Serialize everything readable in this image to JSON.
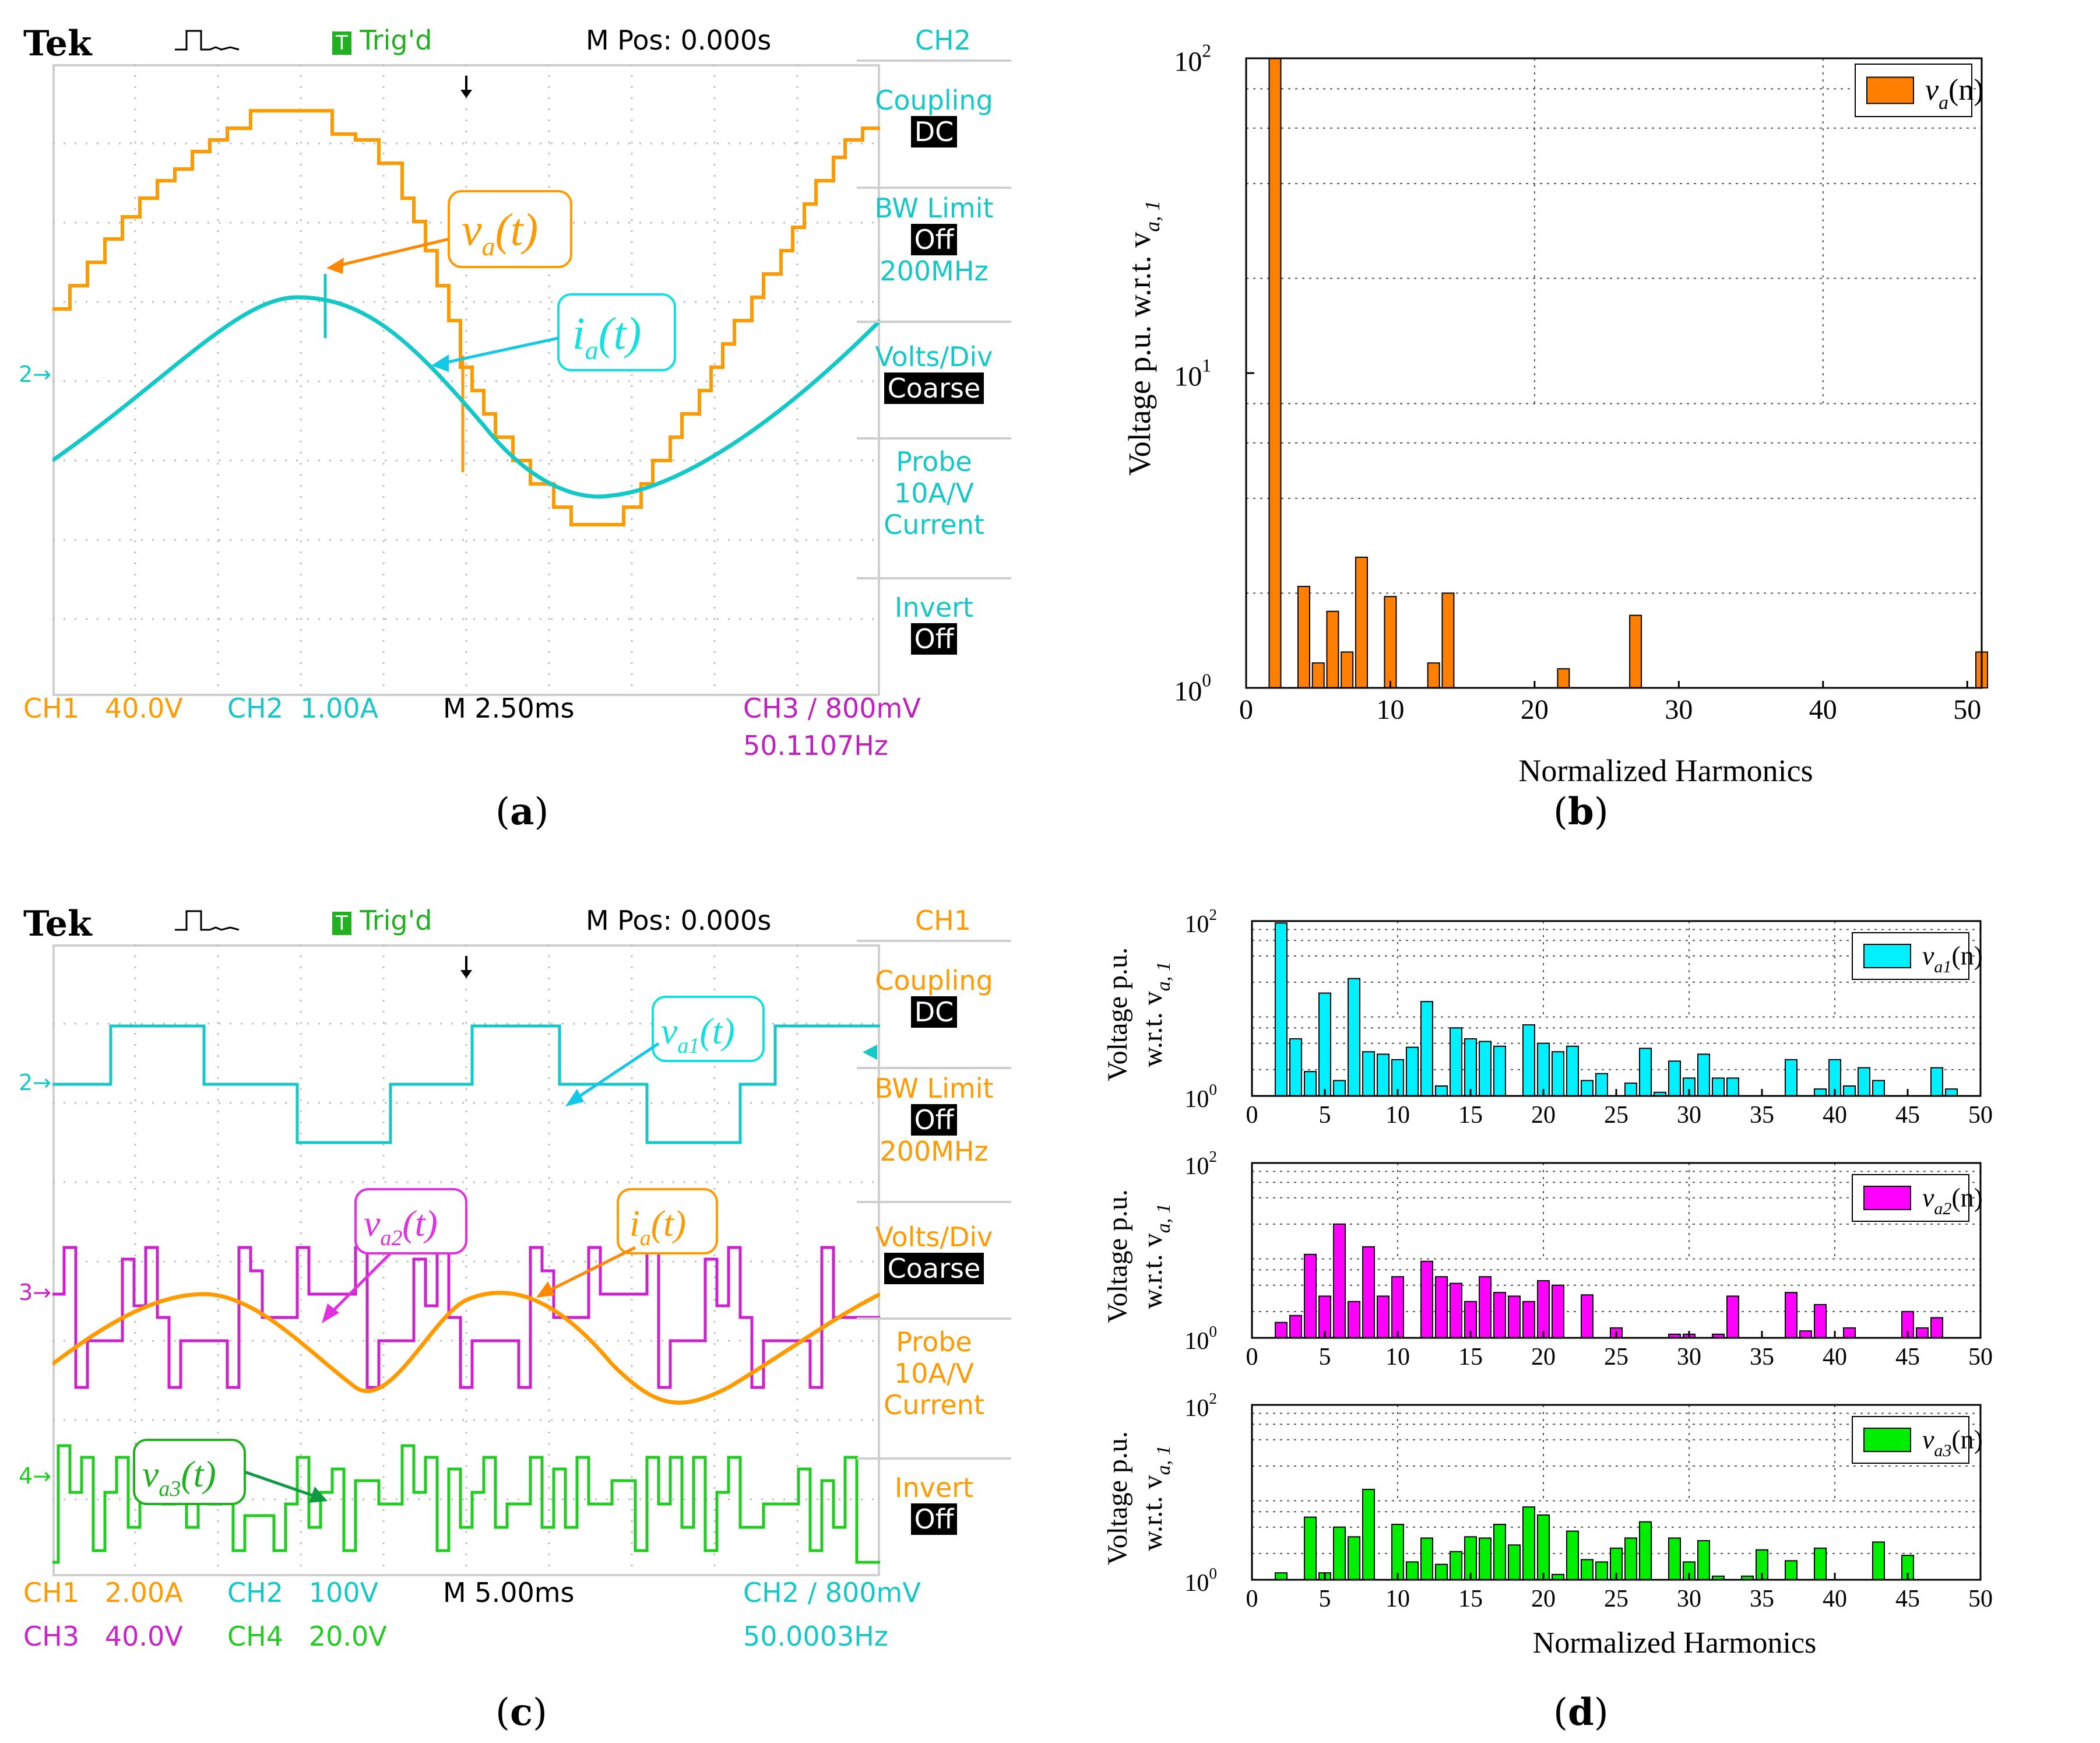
{
  "captions": {
    "a": "a",
    "b": "b",
    "c": "c",
    "d": "d"
  },
  "colors": {
    "orange": "#ff9a00",
    "cyan": "#14c8c8",
    "magenta": "#e600e6",
    "green": "#22cc22",
    "bar_orange": "#ff7f00",
    "bar_cyan": "#00f0ff",
    "bar_magenta": "#ff00ff",
    "bar_green": "#00ee00"
  },
  "scope_a": {
    "brand": "Tek",
    "trig_status": "Trig'd",
    "mpos": "M Pos: 0.000s",
    "channel": "CH2",
    "coupling_label": "Coupling",
    "coupling_value": "DC",
    "bw_label": "BW Limit",
    "bw_value": "Off",
    "bw_freq": "200MHz",
    "volts_label": "Volts/Div",
    "volts_value": "Coarse",
    "probe_label": "Probe",
    "probe_value": "10A/V",
    "probe_type": "Current",
    "invert_label": "Invert",
    "invert_value": "Off",
    "ch1": "CH1",
    "ch1_scale": "40.0V",
    "ch2": "CH2",
    "ch2_scale": "1.00A",
    "timebase": "M 2.50ms",
    "trigger": "CH3 ∕ 800mV",
    "freq": "50.1107Hz",
    "marker_ch2": "2→",
    "label_v": "v",
    "label_v_sub": "a",
    "label_t": "(t)",
    "label_i": "i",
    "label_i_sub": "a"
  },
  "scope_c": {
    "brand": "Tek",
    "trig_status": "Trig'd",
    "mpos": "M Pos: 0.000s",
    "channel": "CH1",
    "coupling_label": "Coupling",
    "coupling_value": "DC",
    "bw_label": "BW Limit",
    "bw_value": "Off",
    "bw_freq": "200MHz",
    "volts_label": "Volts/Div",
    "volts_value": "Coarse",
    "probe_label": "Probe",
    "probe_value": "10A/V",
    "probe_type": "Current",
    "invert_label": "Invert",
    "invert_value": "Off",
    "ch1": "CH1",
    "ch1_scale": "2.00A",
    "ch2": "CH2",
    "ch2_scale": "100V",
    "ch3": "CH3",
    "ch3_scale": "40.0V",
    "ch4": "CH4",
    "ch4_scale": "20.0V",
    "timebase": "M 5.00ms",
    "trigger": "CH2 ∕ 800mV",
    "freq": "50.0003Hz",
    "marker_ch2": "2→",
    "marker_ch3": "3→",
    "marker_ch4": "4→",
    "label_va1": "v",
    "label_va1_sub": "a1",
    "label_va2": "v",
    "label_va2_sub": "a2",
    "label_va3": "v",
    "label_va3_sub": "a3",
    "label_ia": "i",
    "label_ia_sub": "a",
    "label_t": "(t)"
  },
  "chart_data": [
    {
      "id": "b",
      "type": "bar",
      "yscale": "log",
      "xlabel": "Normalized Harmonics",
      "ylabel": "Voltage p.u. w.r.t.  v",
      "ylabel_sub": "a, 1",
      "xlim": [
        0,
        51
      ],
      "ylim": [
        1,
        100
      ],
      "xticks": [
        "0",
        "10",
        "20",
        "30",
        "40",
        "50"
      ],
      "yticks": [
        "10",
        "10",
        "10"
      ],
      "yticks_exp": [
        "0",
        "1",
        "2"
      ],
      "legend": "v",
      "legend_sub": "a",
      "legend_arg": "(n)",
      "x": [
        2,
        4,
        5,
        6,
        7,
        8,
        10,
        13,
        14,
        22,
        27,
        51
      ],
      "values": [
        100,
        2.1,
        1.2,
        1.75,
        1.3,
        2.6,
        1.95,
        1.2,
        2.0,
        1.15,
        1.7,
        1.3
      ]
    },
    {
      "id": "d1",
      "type": "bar",
      "yscale": "log",
      "ylabel": "Voltage p.u.",
      "ylabel2": "w.r.t.  v",
      "ylabel_sub": "a, 1",
      "xlim": [
        0,
        50
      ],
      "ylim": [
        1,
        100
      ],
      "xticks": [
        "0",
        "5",
        "10",
        "15",
        "20",
        "25",
        "30",
        "35",
        "40",
        "45",
        "50"
      ],
      "yticks": [
        "10",
        "10"
      ],
      "yticks_exp": [
        "0",
        "2"
      ],
      "legend": "v",
      "legend_sub": "a1",
      "legend_arg": "(n)",
      "x": [
        2,
        3,
        4,
        5,
        6,
        7,
        8,
        9,
        10,
        11,
        12,
        13,
        14,
        15,
        16,
        17,
        19,
        20,
        21,
        22,
        23,
        24,
        26,
        27,
        28,
        29,
        30,
        31,
        32,
        33,
        37,
        39,
        40,
        41,
        42,
        43,
        47,
        48
      ],
      "values": [
        95,
        4.5,
        1.9,
        15,
        1.5,
        22,
        3.2,
        3.0,
        2.6,
        3.6,
        12,
        1.3,
        6.0,
        4.5,
        4.2,
        3.7,
        6.5,
        4.0,
        3.2,
        3.7,
        1.5,
        1.8,
        1.4,
        3.5,
        1.1,
        2.5,
        1.6,
        3.0,
        1.6,
        1.6,
        2.6,
        1.2,
        2.6,
        1.3,
        2.1,
        1.5,
        2.1,
        1.2
      ]
    },
    {
      "id": "d2",
      "type": "bar",
      "yscale": "log",
      "ylabel": "Voltage p.u.",
      "ylabel2": "w.r.t.  v",
      "ylabel_sub": "a, 1",
      "xlim": [
        0,
        50
      ],
      "ylim": [
        1,
        100
      ],
      "xticks": [
        "0",
        "5",
        "10",
        "15",
        "20",
        "25",
        "30",
        "35",
        "40",
        "45",
        "50"
      ],
      "yticks": [
        "10",
        "10"
      ],
      "yticks_exp": [
        "0",
        "2"
      ],
      "legend": "v",
      "legend_sub": "a2",
      "legend_arg": "(n)",
      "x": [
        2,
        3,
        4,
        5,
        6,
        7,
        8,
        9,
        10,
        11,
        12,
        13,
        14,
        15,
        16,
        17,
        18,
        19,
        20,
        21,
        23,
        25,
        29,
        30,
        32,
        33,
        37,
        38,
        39,
        41,
        45,
        46,
        47
      ],
      "values": [
        1.5,
        1.8,
        9.0,
        3.0,
        20,
        2.6,
        11,
        3.0,
        5.0,
        1.0,
        7.5,
        5.0,
        4.2,
        2.6,
        5.0,
        3.3,
        3.0,
        2.6,
        4.5,
        4.0,
        3.1,
        1.3,
        1.1,
        1.1,
        1.1,
        3.0,
        3.3,
        1.2,
        2.4,
        1.3,
        2.0,
        1.3,
        1.7
      ]
    },
    {
      "id": "d3",
      "type": "bar",
      "yscale": "log",
      "xlabel": "Normalized Harmonics",
      "ylabel": "Voltage p.u.",
      "ylabel2": "w.r.t.  v",
      "ylabel_sub": "a, 1",
      "xlim": [
        0,
        50
      ],
      "ylim": [
        1,
        100
      ],
      "xticks": [
        "0",
        "5",
        "10",
        "15",
        "20",
        "25",
        "30",
        "35",
        "40",
        "45",
        "50"
      ],
      "yticks": [
        "10",
        "10"
      ],
      "yticks_exp": [
        "0",
        "2"
      ],
      "legend": "v",
      "legend_sub": "a3",
      "legend_arg": "(n)",
      "x": [
        2,
        4,
        5,
        6,
        7,
        8,
        10,
        11,
        12,
        13,
        14,
        15,
        16,
        17,
        18,
        19,
        20,
        21,
        22,
        23,
        24,
        25,
        26,
        27,
        29,
        30,
        31,
        32,
        34,
        35,
        37,
        39,
        43,
        45
      ],
      "values": [
        1.2,
        5.2,
        1.2,
        4.0,
        3.1,
        10.8,
        4.3,
        1.6,
        3.0,
        1.5,
        2.1,
        3.1,
        3.0,
        4.3,
        2.5,
        6.8,
        5.5,
        1.15,
        3.6,
        1.7,
        1.6,
        2.3,
        3.0,
        4.6,
        3.0,
        1.6,
        2.8,
        1.1,
        1.1,
        2.2,
        1.65,
        2.3,
        2.7,
        1.9
      ]
    }
  ]
}
